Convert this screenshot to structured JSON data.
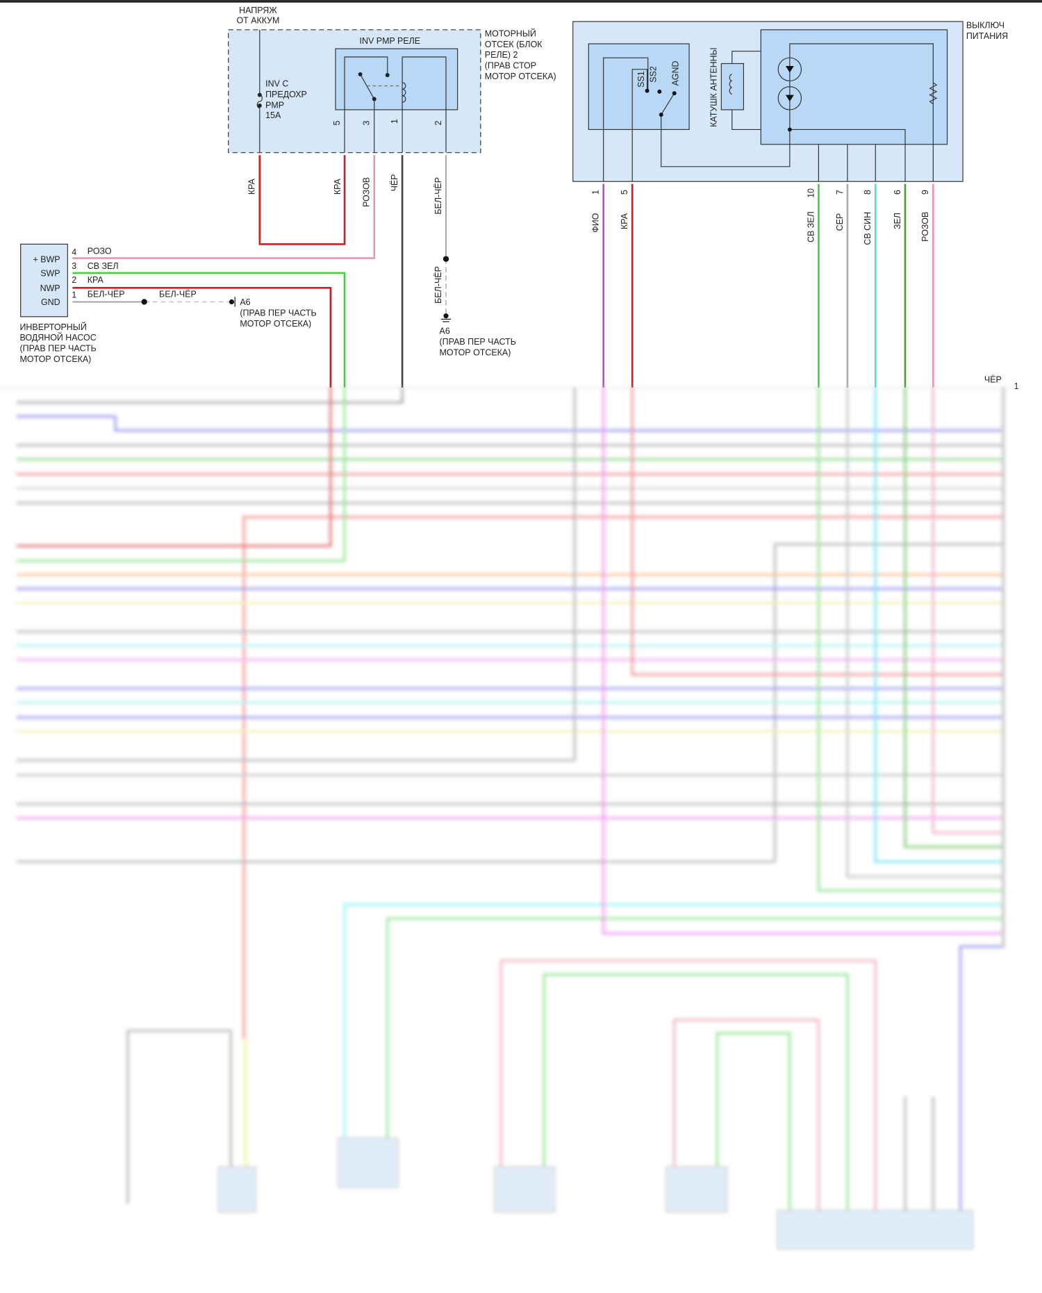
{
  "colors": {
    "red": "#cc2020",
    "pink": "#e898b0",
    "green": "#40d040",
    "dark_green": "#40a030",
    "black": "#444444",
    "gray": "#aaaaaa",
    "violet": "#d040e0",
    "cyan": "#40e0e8",
    "box_fill": "#d6e8f8",
    "inner_fill": "#b8d8f5"
  },
  "battery": {
    "line1": "НАПРЯЖ",
    "line2": "ОТ АККУМ"
  },
  "fuse": {
    "l1": "INV C",
    "l2": "ПРЕДОХР",
    "l3": "PMP",
    "l4": "15A"
  },
  "relay": {
    "title": "INV PMP РЕЛЕ",
    "pins": [
      "5",
      "3",
      "1",
      "2"
    ],
    "location": [
      "МОТОРНЫЙ",
      "ОТСЕК (БЛОК",
      "РЕЛЕ) 2",
      "(ПРАВ СТОР",
      "МОТОР ОТСЕКА)"
    ],
    "wires": [
      "КРА",
      "КРА",
      "РОЗОВ",
      "ЧЁР",
      "БЕЛ-ЧЁР"
    ]
  },
  "ground_right": {
    "wire": "БЕЛ-ЧЁР",
    "name": "A6",
    "l1": "(ПРАВ ПЕР ЧАСТЬ",
    "l2": "МОТОР ОТСЕКА)"
  },
  "pump": {
    "pins": [
      {
        "num": "4",
        "name": "+ BWP",
        "wire": "РОЗО"
      },
      {
        "num": "3",
        "name": "SWP",
        "wire": "СВ ЗЕЛ"
      },
      {
        "num": "2",
        "name": "NWP",
        "wire": "КРА"
      },
      {
        "num": "1",
        "name": "GND",
        "wire": "БЕЛ-ЧЁР"
      }
    ],
    "gnd_wire2": "БЕЛ-ЧЁР",
    "ground": "A6",
    "ground_l1": "(ПРАВ ПЕР ЧАСТЬ",
    "ground_l2": "МОТОР ОТСЕКА)",
    "label": [
      "ИНВЕРТОРНЫЙ",
      "ВОДЯНОЙ НАСОС",
      "(ПРАВ ПЕР ЧАСТЬ",
      "МОТОР ОТСЕКА)"
    ]
  },
  "power_switch": {
    "label": [
      "ВЫКЛЮЧ",
      "ПИТАНИЯ"
    ],
    "ss1": "SS1",
    "ss2": "SS2",
    "agnd": "AGND",
    "coil": "КАТУШК АНТЕННЫ",
    "pins": [
      {
        "num": "1",
        "wire": "ФИО"
      },
      {
        "num": "5",
        "wire": "КРА"
      },
      {
        "num": "10",
        "wire": "СВ ЗЕЛ"
      },
      {
        "num": "7",
        "wire": "СЕР"
      },
      {
        "num": "8",
        "wire": "СВ СИН"
      },
      {
        "num": "6",
        "wire": "ЗЕЛ"
      },
      {
        "num": "9",
        "wire": "РОЗОВ"
      }
    ]
  },
  "harness": {
    "wire": "ЧЁР",
    "pin": "1"
  }
}
